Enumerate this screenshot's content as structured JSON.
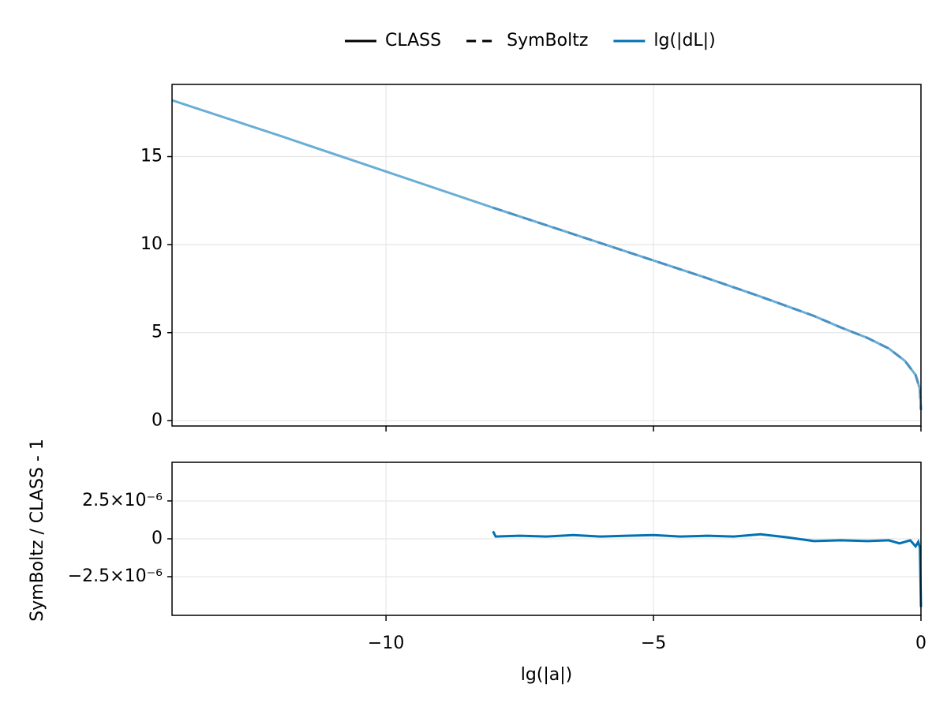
{
  "chart_data": [
    {
      "type": "line",
      "legend_variable": "lg(|dL|)",
      "legend_variable_color": "#0072b2",
      "xlim": [
        -14,
        0
      ],
      "xticks": [
        -10,
        -5,
        0
      ],
      "show_xtick_labels": false,
      "ylim": [
        -0.3,
        19.1
      ],
      "yticks": [
        0,
        5,
        10,
        15
      ],
      "grid": true,
      "series": [
        {
          "name": "CLASS",
          "color": "#6aaed6",
          "dash": false,
          "x": [
            -14,
            -12,
            -10,
            -8,
            -6,
            -5,
            -4,
            -3,
            -2,
            -1.5,
            -1,
            -0.6,
            -0.3,
            -0.1,
            -0.02,
            0
          ],
          "values": [
            18.2,
            16.2,
            14.15,
            12.1,
            10.1,
            9.1,
            8.1,
            7.05,
            5.95,
            5.3,
            4.7,
            4.1,
            3.4,
            2.6,
            1.8,
            0.6
          ]
        },
        {
          "name": "SymBoltz",
          "color": "#4a90c2",
          "dash": true,
          "x": [
            -8,
            -6,
            -5,
            -4,
            -3,
            -2,
            -1.5,
            -1,
            -0.6,
            -0.3,
            -0.1,
            -0.02,
            0
          ],
          "values": [
            12.1,
            10.1,
            9.1,
            8.1,
            7.05,
            5.95,
            5.3,
            4.7,
            4.1,
            3.4,
            2.6,
            1.8,
            0.6
          ]
        }
      ]
    },
    {
      "type": "line",
      "xlabel": "lg(|a|)",
      "ylabel": "SymBoltz / CLASS - 1",
      "xlim": [
        -14,
        0
      ],
      "xticks": [
        {
          "value": -10,
          "label": "−10"
        },
        {
          "value": -5,
          "label": "−5"
        },
        {
          "value": 0,
          "label": "0"
        }
      ],
      "show_xtick_labels": true,
      "ylim": [
        -5.05e-06,
        5.05e-06
      ],
      "yticks": [
        {
          "value": -2.5e-06,
          "label": "−2.5×10⁻⁶"
        },
        {
          "value": 0,
          "label": "0"
        },
        {
          "value": 2.5e-06,
          "label": "2.5×10⁻⁶"
        }
      ],
      "grid": true,
      "series": [
        {
          "name": "SymBoltz / CLASS - 1",
          "color": "#0072b2",
          "dash": false,
          "x": [
            -8,
            -7.95,
            -7.5,
            -7,
            -6.5,
            -6,
            -5.5,
            -5,
            -4.5,
            -4,
            -3.5,
            -3,
            -2.5,
            -2,
            -1.5,
            -1,
            -0.6,
            -0.4,
            -0.2,
            -0.1,
            -0.05,
            -0.02,
            0
          ],
          "values": [
            5e-07,
            1.5e-07,
            2e-07,
            1.5e-07,
            2.5e-07,
            1.5e-07,
            2e-07,
            2.5e-07,
            1.5e-07,
            2e-07,
            1.5e-07,
            3e-07,
            1e-07,
            -1.5e-07,
            -1e-07,
            -1.5e-07,
            -1e-07,
            -3e-07,
            -1e-07,
            -5e-07,
            -2e-07,
            -6e-07,
            -4.5e-06
          ]
        }
      ]
    }
  ]
}
